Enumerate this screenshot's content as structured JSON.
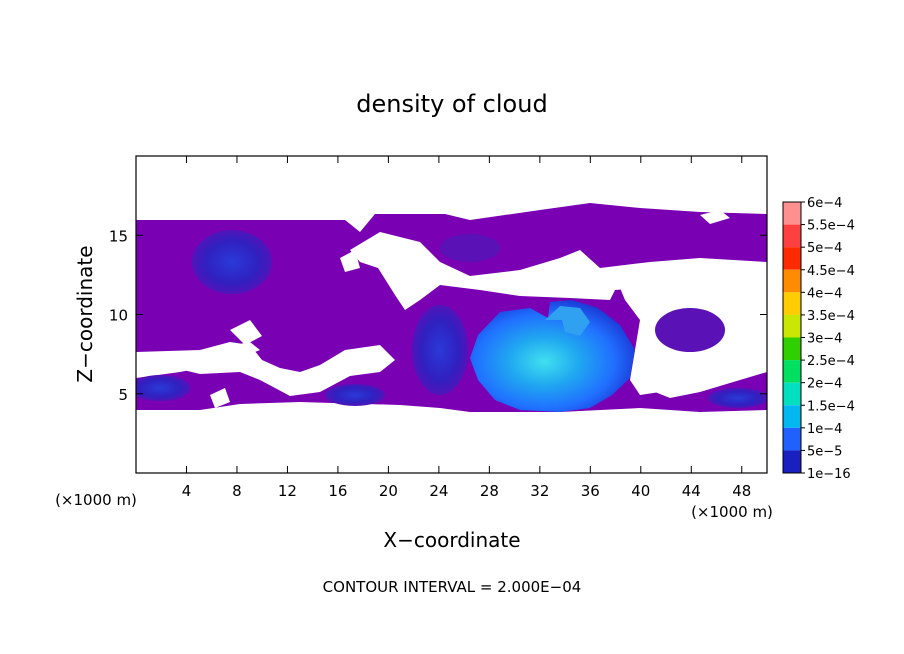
{
  "chart_data": {
    "type": "heatmap",
    "title": "density of cloud",
    "xlabel": "X−coordinate",
    "ylabel": "Z−coordinate",
    "x_unit_left": "(×1000 m)",
    "x_unit_right": "(×1000 m)",
    "footnote": "CONTOUR INTERVAL = 2.000E−04",
    "xlim": [
      0,
      50
    ],
    "ylim": [
      0,
      20
    ],
    "x_ticks": [
      4,
      8,
      12,
      16,
      20,
      24,
      28,
      32,
      36,
      40,
      44,
      48
    ],
    "y_ticks": [
      5,
      10,
      15
    ],
    "grid": false,
    "colorbar": {
      "labels": [
        "6e−4",
        "5.5e−4",
        "5e−4",
        "4.5e−4",
        "4e−4",
        "3.5e−4",
        "3e−4",
        "2.5e−4",
        "2e−4",
        "1.5e−4",
        "1e−4",
        "5e−5",
        "1e−16"
      ],
      "colors": [
        "#ff9090",
        "#ff4040",
        "#ff2a00",
        "#ff8c00",
        "#ffcc00",
        "#c8e600",
        "#30d000",
        "#00e060",
        "#00e0c0",
        "#00b8f0",
        "#2060ff",
        "#1a20c0",
        "#7a00b4"
      ]
    },
    "cloud_regions": [
      {
        "level": "1e−16",
        "z_range": [
          4,
          16
        ],
        "x_range": [
          0,
          50
        ]
      },
      {
        "level": "5e−5",
        "x": 7,
        "z": 13.5
      },
      {
        "level": "5e−5",
        "x": 2.5,
        "z": 5.5
      },
      {
        "level": "5e−5",
        "x": 17,
        "z": 5.2
      },
      {
        "level": "5e−5",
        "x": 47,
        "z": 5.0
      },
      {
        "level": "1e−4",
        "x": 27,
        "z": 7.5
      },
      {
        "level": "1.5e−4",
        "x": 33,
        "z": 7.5
      },
      {
        "level": "2e−4",
        "x": 30,
        "z": 6.6
      }
    ]
  }
}
